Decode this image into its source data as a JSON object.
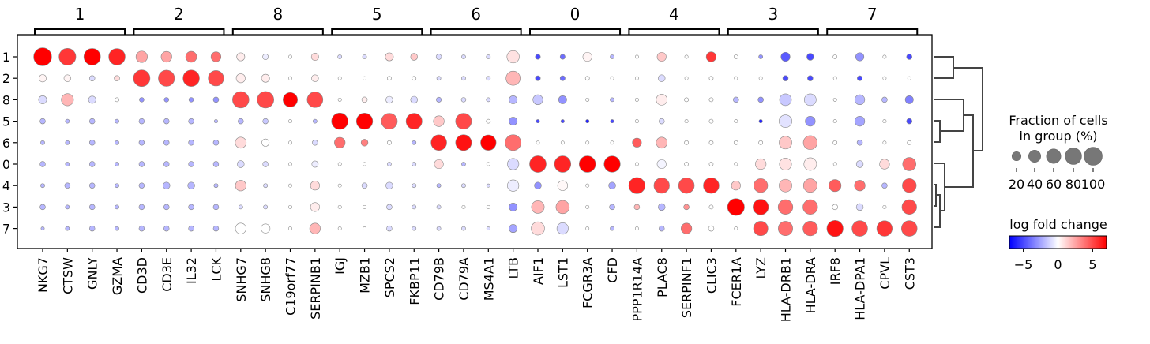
{
  "chart_data": {
    "type": "dotplot",
    "groups": [
      "1",
      "2",
      "8",
      "5",
      "6",
      "0",
      "4",
      "3",
      "7"
    ],
    "genes": [
      "NKG7",
      "CTSW",
      "GNLY",
      "GZMA",
      "CD3D",
      "CD3E",
      "IL32",
      "LCK",
      "SNHG7",
      "SNHG8",
      "C19orf77",
      "SERPINB1",
      "IGJ",
      "MZB1",
      "SPCS2",
      "FKBP11",
      "CD79B",
      "CD79A",
      "MS4A1",
      "LTB",
      "AIF1",
      "LST1",
      "FCGR3A",
      "CFD",
      "PPP1R14A",
      "PLAC8",
      "SERPINF1",
      "CLIC3",
      "FCER1A",
      "LYZ",
      "HLA-DRB1",
      "HLA-DRA",
      "IRF8",
      "HLA-DPA1",
      "CPVL",
      "CST3"
    ],
    "gene_groups": [
      {
        "label": "1",
        "start": 0,
        "end": 3
      },
      {
        "label": "2",
        "start": 4,
        "end": 7
      },
      {
        "label": "8",
        "start": 8,
        "end": 11
      },
      {
        "label": "5",
        "start": 12,
        "end": 15
      },
      {
        "label": "6",
        "start": 16,
        "end": 19
      },
      {
        "label": "0",
        "start": 20,
        "end": 23
      },
      {
        "label": "4",
        "start": 24,
        "end": 27
      },
      {
        "label": "3",
        "start": 28,
        "end": 31
      },
      {
        "label": "7",
        "start": 32,
        "end": 35
      }
    ],
    "fraction": [
      [
        98,
        85,
        82,
        80,
        35,
        30,
        32,
        25,
        15,
        6,
        1,
        12,
        2,
        2,
        15,
        10,
        5,
        2,
        2,
        42,
        4,
        4,
        20,
        2,
        1,
        20,
        1,
        25,
        2,
        2,
        20,
        10,
        2,
        16,
        1,
        5
      ],
      [
        12,
        10,
        5,
        5,
        82,
        78,
        80,
        70,
        20,
        15,
        1,
        10,
        1,
        1,
        2,
        2,
        2,
        2,
        2,
        58,
        4,
        4,
        2,
        1,
        1,
        10,
        1,
        2,
        1,
        1,
        5,
        5,
        1,
        4,
        1,
        1
      ],
      [
        15,
        40,
        12,
        2,
        3,
        3,
        3,
        5,
        80,
        82,
        60,
        72,
        1,
        5,
        10,
        10,
        4,
        3,
        2,
        15,
        25,
        15,
        1,
        2,
        1,
        32,
        2,
        2,
        5,
        5,
        38,
        38,
        1,
        25,
        5,
        15
      ],
      [
        5,
        2,
        5,
        2,
        5,
        5,
        5,
        1,
        5,
        5,
        1,
        2,
        80,
        78,
        75,
        75,
        30,
        75,
        2,
        15,
        1,
        1,
        1,
        1,
        1,
        5,
        1,
        2,
        1,
        1,
        45,
        25,
        1,
        25,
        1,
        5
      ],
      [
        2,
        2,
        5,
        2,
        5,
        5,
        5,
        5,
        32,
        12,
        1,
        5,
        30,
        10,
        2,
        2,
        72,
        75,
        70,
        75,
        1,
        1,
        1,
        1,
        20,
        32,
        2,
        2,
        2,
        2,
        45,
        55,
        2,
        5,
        1,
        2
      ],
      [
        5,
        2,
        5,
        2,
        5,
        5,
        5,
        5,
        10,
        5,
        1,
        8,
        1,
        1,
        2,
        2,
        20,
        2,
        1,
        35,
        82,
        80,
        80,
        78,
        1,
        20,
        2,
        2,
        1,
        30,
        40,
        45,
        1,
        10,
        25,
        50
      ],
      [
        2,
        5,
        5,
        2,
        5,
        10,
        10,
        2,
        30,
        2,
        1,
        20,
        1,
        5,
        10,
        2,
        2,
        2,
        1,
        35,
        10,
        25,
        1,
        10,
        78,
        70,
        72,
        72,
        20,
        55,
        45,
        52,
        40,
        30,
        5,
        55
      ],
      [
        5,
        2,
        5,
        2,
        5,
        5,
        5,
        5,
        2,
        2,
        1,
        20,
        1,
        1,
        5,
        2,
        2,
        1,
        1,
        15,
        45,
        50,
        1,
        5,
        5,
        10,
        5,
        2,
        85,
        70,
        62,
        62,
        5,
        10,
        1,
        62
      ],
      [
        1,
        2,
        5,
        2,
        5,
        5,
        5,
        5,
        30,
        20,
        1,
        30,
        1,
        1,
        5,
        2,
        2,
        2,
        1,
        15,
        50,
        35,
        1,
        2,
        1,
        5,
        30,
        5,
        1,
        60,
        60,
        62,
        78,
        72,
        70,
        72
      ]
    ],
    "logfoldchange": [
      [
        7,
        5.5,
        7,
        6,
        2.5,
        2.5,
        4,
        4,
        0.5,
        -0.5,
        0,
        1,
        -1,
        -1,
        1,
        1.5,
        -1,
        -1,
        -1,
        0.8,
        -5,
        -4,
        0.3,
        -2,
        0,
        1.5,
        0,
        5.5,
        0,
        -3,
        -4.5,
        -5,
        0,
        -3,
        0,
        -5
      ],
      [
        0.3,
        0.3,
        -1,
        1,
        5.5,
        5,
        6,
        5,
        0.5,
        0.5,
        0,
        0.5,
        0,
        0,
        0,
        0,
        -1,
        -1,
        -1,
        2,
        -5,
        -4,
        0,
        0,
        0,
        -1,
        0,
        0,
        0,
        0,
        -5,
        -5,
        0,
        -5,
        0,
        0
      ],
      [
        -1,
        2,
        -1,
        0,
        -3,
        -3,
        -3,
        -3,
        5,
        5,
        7,
        5,
        0,
        0.5,
        -0.5,
        -1,
        -2,
        -1,
        -1,
        -2,
        -1.5,
        -3,
        0,
        -2,
        0,
        0.5,
        0,
        0,
        -2,
        -3,
        -1.5,
        -1,
        0,
        -2,
        -2,
        -3.5
      ],
      [
        -2,
        -2,
        -2,
        -2,
        -2,
        -2,
        -2,
        -2,
        -2,
        -1.5,
        0,
        -2,
        7,
        7,
        4.5,
        6,
        1.5,
        5,
        0,
        -3,
        -5,
        -5,
        -6,
        -5,
        0,
        -1,
        0,
        0,
        0,
        -6,
        -0.8,
        -3,
        0,
        -2.5,
        0,
        -5
      ],
      [
        -2,
        -2,
        -2,
        -2,
        -2,
        -2,
        -2,
        -2,
        1,
        0,
        0,
        -1,
        4,
        3.5,
        0,
        -2,
        6,
        6.5,
        7,
        4,
        0,
        0,
        0,
        0,
        4.5,
        2,
        0,
        0,
        0,
        0,
        1.5,
        2.5,
        0,
        -2,
        0,
        0
      ],
      [
        -2,
        -2,
        -2,
        -2,
        -2,
        -2,
        -2,
        -2,
        -1,
        -1,
        0,
        -0.5,
        0,
        0,
        -1,
        -1,
        1,
        -2,
        0,
        -1,
        6,
        6,
        7,
        7,
        0,
        -0.3,
        0,
        0,
        0,
        1,
        0.8,
        0.5,
        0,
        -1,
        1,
        4
      ],
      [
        -2,
        -2,
        -2,
        -2,
        -2,
        -2,
        -2,
        -2,
        1.5,
        -1,
        0,
        1,
        0,
        -1,
        -1,
        -1,
        -2,
        -1,
        -1,
        -0.5,
        -3,
        0.2,
        0,
        -2.5,
        6,
        5,
        5,
        6,
        1.5,
        4,
        2,
        2.5,
        4.5,
        4,
        -2,
        5
      ],
      [
        -2,
        -2,
        -2,
        -2,
        -2,
        -2,
        -2,
        -2,
        -1,
        -1,
        0,
        0.5,
        0,
        0,
        -1,
        -1,
        -1,
        0,
        0,
        -3,
        2,
        2.5,
        0,
        -2,
        2,
        -2,
        3,
        0,
        7,
        6.5,
        4,
        4,
        0,
        -1,
        0,
        5
      ],
      [
        -2,
        -2,
        -2,
        -2,
        -2,
        -2,
        -2,
        -2,
        0,
        0,
        0,
        2,
        0,
        0,
        -1,
        -1,
        -1,
        -1,
        -1,
        -2.5,
        1,
        -1,
        0,
        -2,
        0,
        -2,
        4,
        0,
        0,
        5,
        4,
        4.5,
        6.5,
        5,
        5.5,
        5
      ]
    ],
    "size_legend": {
      "title": "Fraction of cells\nin group (%)",
      "ticks": [
        "20",
        "40",
        "60",
        "80",
        "100"
      ],
      "values": [
        20,
        40,
        60,
        80,
        100
      ]
    },
    "color_legend": {
      "title": "log fold change",
      "ticks": [
        "−5",
        "0",
        "5"
      ],
      "tick_values": [
        -5,
        0,
        5
      ],
      "range": [
        -7,
        7
      ],
      "colormap": "bwr"
    },
    "dendrogram": true
  }
}
